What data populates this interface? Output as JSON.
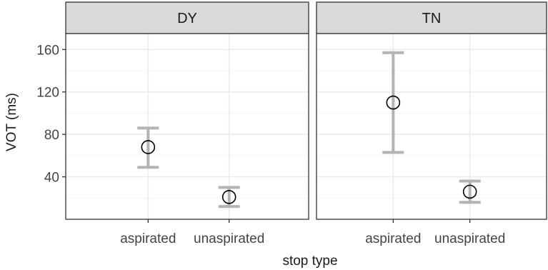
{
  "chart_data": {
    "type": "scatter",
    "subtype": "point-range (mean with error bars), faceted",
    "xlabel": "stop type",
    "ylabel": "VOT (ms)",
    "categories": [
      "aspirated",
      "unaspirated"
    ],
    "ylim": [
      0,
      175
    ],
    "yticks": [
      40,
      80,
      120,
      160
    ],
    "grid": true,
    "facets": [
      {
        "label": "DY",
        "points": [
          {
            "category": "aspirated",
            "y": 68,
            "ymin": 49,
            "ymax": 86
          },
          {
            "category": "unaspirated",
            "y": 21,
            "ymin": 12,
            "ymax": 30
          }
        ]
      },
      {
        "label": "TN",
        "points": [
          {
            "category": "aspirated",
            "y": 110,
            "ymin": 63,
            "ymax": 157
          },
          {
            "category": "unaspirated",
            "y": 26,
            "ymin": 16,
            "ymax": 36
          }
        ]
      }
    ],
    "colors": {
      "strip_fill": "#d9d9d9",
      "border": "#333333",
      "grid_major": "#ebebeb",
      "grid_minor": "#f4f4f4",
      "errorbar": "#b3b3b3",
      "point": "#000000"
    }
  }
}
